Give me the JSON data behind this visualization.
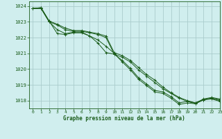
{
  "title": "Graphe pression niveau de la mer (hPa)",
  "background_color": "#d0eeee",
  "grid_color": "#aacccc",
  "line_color": "#1a5c1a",
  "xlim": [
    -0.5,
    23
  ],
  "ylim": [
    1017.5,
    1024.3
  ],
  "yticks": [
    1018,
    1019,
    1020,
    1021,
    1022,
    1023,
    1024
  ],
  "xticks": [
    0,
    1,
    2,
    3,
    4,
    5,
    6,
    7,
    8,
    9,
    10,
    11,
    12,
    13,
    14,
    15,
    16,
    17,
    18,
    19,
    20,
    21,
    22,
    23
  ],
  "series": [
    [
      1023.85,
      1023.85,
      1023.0,
      1022.5,
      1022.25,
      1022.35,
      1022.35,
      1022.1,
      1021.85,
      1021.45,
      1021.0,
      1020.45,
      1019.95,
      1019.35,
      1018.95,
      1018.55,
      1018.45,
      1018.15,
      1017.75,
      1017.85,
      1017.8,
      1018.05,
      1018.1,
      1017.95
    ],
    [
      1023.85,
      1023.85,
      1023.0,
      1022.8,
      1022.5,
      1022.4,
      1022.4,
      1022.3,
      1022.2,
      1022.0,
      1020.95,
      1020.75,
      1020.45,
      1019.95,
      1019.55,
      1019.15,
      1018.75,
      1018.45,
      1018.15,
      1017.95,
      1017.8,
      1018.05,
      1018.15,
      1018.05
    ],
    [
      1023.85,
      1023.9,
      1023.05,
      1022.85,
      1022.6,
      1022.45,
      1022.45,
      1022.35,
      1022.25,
      1022.1,
      1021.05,
      1020.85,
      1020.55,
      1020.1,
      1019.65,
      1019.3,
      1018.85,
      1018.5,
      1018.2,
      1018.0,
      1017.85,
      1018.1,
      1018.2,
      1018.1
    ],
    [
      1023.85,
      1023.9,
      1023.05,
      1022.25,
      1022.2,
      1022.3,
      1022.3,
      1022.1,
      1021.65,
      1021.05,
      1020.95,
      1020.55,
      1020.05,
      1019.45,
      1019.05,
      1018.65,
      1018.55,
      1018.25,
      1017.85,
      1017.95,
      1017.85,
      1018.05,
      1018.15,
      1018.0
    ]
  ]
}
